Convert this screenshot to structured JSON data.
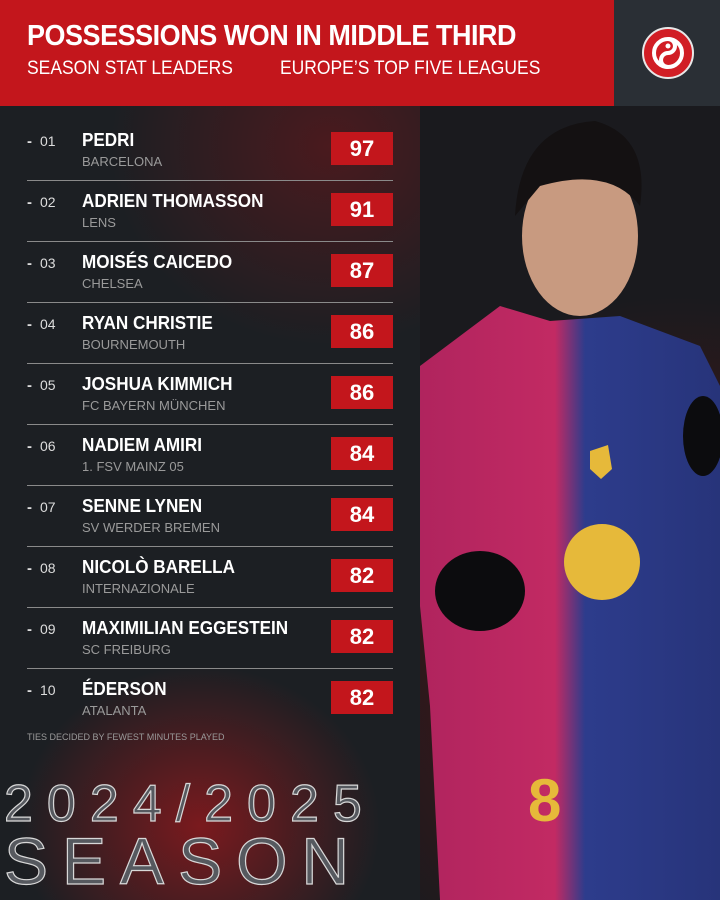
{
  "header": {
    "title": "POSSESSIONS WON IN MIDDLE THIRD",
    "subtitle_left": "SEASON STAT LEADERS",
    "subtitle_right": "EUROPE’S TOP FIVE LEAGUES"
  },
  "leaders": [
    {
      "rank": "01",
      "name": "PEDRI",
      "club": "BARCELONA",
      "value": "97"
    },
    {
      "rank": "02",
      "name": "ADRIEN THOMASSON",
      "club": "LENS",
      "value": "91"
    },
    {
      "rank": "03",
      "name": "MOISÉS CAICEDO",
      "club": "CHELSEA",
      "value": "87"
    },
    {
      "rank": "04",
      "name": "RYAN CHRISTIE",
      "club": "BOURNEMOUTH",
      "value": "86"
    },
    {
      "rank": "05",
      "name": "JOSHUA KIMMICH",
      "club": "FC BAYERN MÜNCHEN",
      "value": "86"
    },
    {
      "rank": "06",
      "name": "NADIEM AMIRI",
      "club": "1. FSV MAINZ 05",
      "value": "84"
    },
    {
      "rank": "07",
      "name": "SENNE LYNEN",
      "club": "SV WERDER BREMEN",
      "value": "84"
    },
    {
      "rank": "08",
      "name": "NICOLÒ BARELLA",
      "club": "INTERNAZIONALE",
      "value": "82"
    },
    {
      "rank": "09",
      "name": "MAXIMILIAN EGGESTEIN",
      "club": "SC FREIBURG",
      "value": "82"
    },
    {
      "rank": "10",
      "name": "ÉDERSON",
      "club": "ATALANTA",
      "value": "82"
    }
  ],
  "footnote": "TIES DECIDED BY FEWEST MINUTES PLAYED",
  "season": {
    "years": "2024/2025",
    "word": "SEASON"
  },
  "photo": {
    "jersey_number": "8"
  },
  "colors": {
    "accent": "#c3161c",
    "background": "#1c1f23"
  }
}
